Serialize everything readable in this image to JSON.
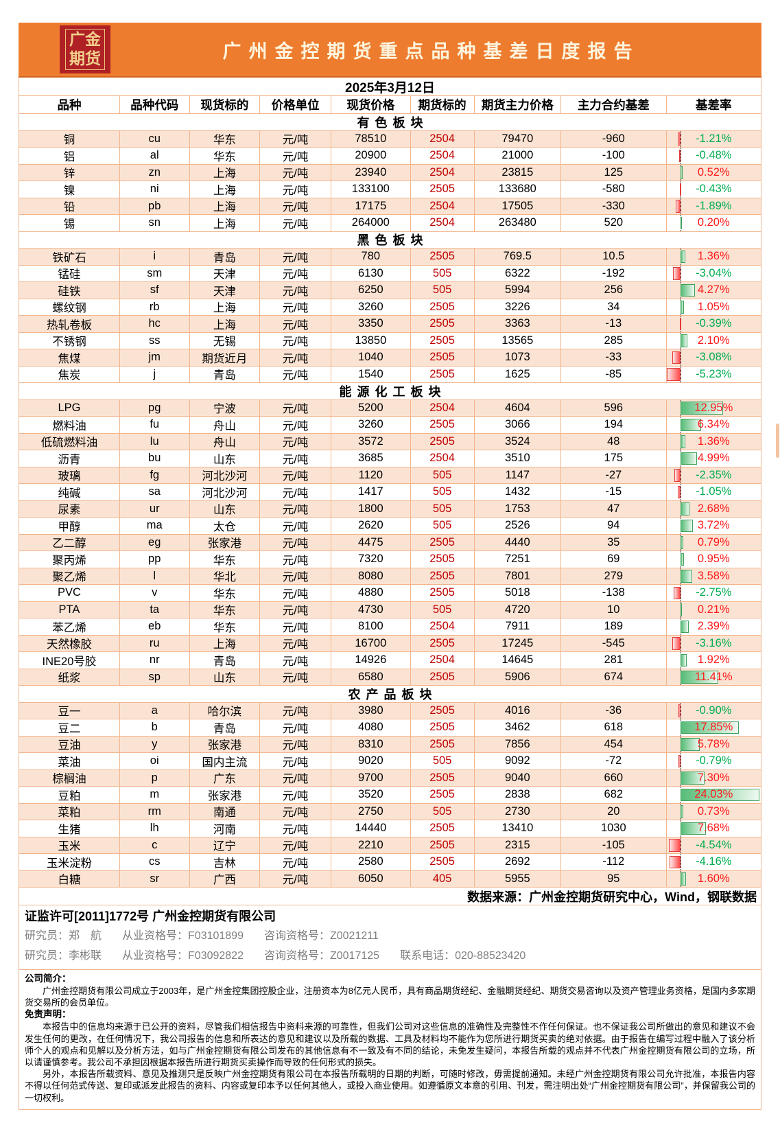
{
  "header": {
    "logo_line1": "广金",
    "logo_line2": "期货",
    "title": "广州金控期货重点品种基差日度报告"
  },
  "date": "2025年3月12日",
  "table": {
    "columns": [
      "品种",
      "品种代码",
      "现货标的",
      "价格单位",
      "现货价格",
      "期货标的",
      "期货主力价格",
      "主力合约基差",
      "基差率"
    ],
    "sections": [
      {
        "name": "有色板块",
        "rows": [
          [
            "铜",
            "cu",
            "华东",
            "元/吨",
            "78510",
            "2504",
            "79470",
            "-960",
            "-1.21%"
          ],
          [
            "铝",
            "al",
            "华东",
            "元/吨",
            "20900",
            "2504",
            "21000",
            "-100",
            "-0.48%"
          ],
          [
            "锌",
            "zn",
            "上海",
            "元/吨",
            "23940",
            "2504",
            "23815",
            "125",
            "0.52%"
          ],
          [
            "镍",
            "ni",
            "上海",
            "元/吨",
            "133100",
            "2505",
            "133680",
            "-580",
            "-0.43%"
          ],
          [
            "铅",
            "pb",
            "上海",
            "元/吨",
            "17175",
            "2504",
            "17505",
            "-330",
            "-1.89%"
          ],
          [
            "锡",
            "sn",
            "上海",
            "元/吨",
            "264000",
            "2504",
            "263480",
            "520",
            "0.20%"
          ]
        ]
      },
      {
        "name": "黑色板块",
        "rows": [
          [
            "铁矿石",
            "i",
            "青岛",
            "元/吨",
            "780",
            "2505",
            "769.5",
            "10.5",
            "1.36%"
          ],
          [
            "锰硅",
            "sm",
            "天津",
            "元/吨",
            "6130",
            "505",
            "6322",
            "-192",
            "-3.04%"
          ],
          [
            "硅铁",
            "sf",
            "天津",
            "元/吨",
            "6250",
            "505",
            "5994",
            "256",
            "4.27%"
          ],
          [
            "螺纹钢",
            "rb",
            "上海",
            "元/吨",
            "3260",
            "2505",
            "3226",
            "34",
            "1.05%"
          ],
          [
            "热轧卷板",
            "hc",
            "上海",
            "元/吨",
            "3350",
            "2505",
            "3363",
            "-13",
            "-0.39%"
          ],
          [
            "不锈钢",
            "ss",
            "无锡",
            "元/吨",
            "13850",
            "2505",
            "13565",
            "285",
            "2.10%"
          ],
          [
            "焦煤",
            "jm",
            "期货近月",
            "元/吨",
            "1040",
            "2505",
            "1073",
            "-33",
            "-3.08%"
          ],
          [
            "焦炭",
            "j",
            "青岛",
            "元/吨",
            "1540",
            "2505",
            "1625",
            "-85",
            "-5.23%"
          ]
        ]
      },
      {
        "name": "能源化工板块",
        "rows": [
          [
            "LPG",
            "pg",
            "宁波",
            "元/吨",
            "5200",
            "2504",
            "4604",
            "596",
            "12.95%"
          ],
          [
            "燃料油",
            "fu",
            "舟山",
            "元/吨",
            "3260",
            "2505",
            "3066",
            "194",
            "6.34%"
          ],
          [
            "低硫燃料油",
            "lu",
            "舟山",
            "元/吨",
            "3572",
            "2505",
            "3524",
            "48",
            "1.36%"
          ],
          [
            "沥青",
            "bu",
            "山东",
            "元/吨",
            "3685",
            "2504",
            "3510",
            "175",
            "4.99%"
          ],
          [
            "玻璃",
            "fg",
            "河北沙河",
            "元/吨",
            "1120",
            "505",
            "1147",
            "-27",
            "-2.35%"
          ],
          [
            "纯碱",
            "sa",
            "河北沙河",
            "元/吨",
            "1417",
            "505",
            "1432",
            "-15",
            "-1.05%"
          ],
          [
            "尿素",
            "ur",
            "山东",
            "元/吨",
            "1800",
            "505",
            "1753",
            "47",
            "2.68%"
          ],
          [
            "甲醇",
            "ma",
            "太仓",
            "元/吨",
            "2620",
            "505",
            "2526",
            "94",
            "3.72%"
          ],
          [
            "乙二醇",
            "eg",
            "张家港",
            "元/吨",
            "4475",
            "2505",
            "4440",
            "35",
            "0.79%"
          ],
          [
            "聚丙烯",
            "pp",
            "华东",
            "元/吨",
            "7320",
            "2505",
            "7251",
            "69",
            "0.95%"
          ],
          [
            "聚乙烯",
            "l",
            "华北",
            "元/吨",
            "8080",
            "2505",
            "7801",
            "279",
            "3.58%"
          ],
          [
            "PVC",
            "v",
            "华东",
            "元/吨",
            "4880",
            "2505",
            "5018",
            "-138",
            "-2.75%"
          ],
          [
            "PTA",
            "ta",
            "华东",
            "元/吨",
            "4730",
            "505",
            "4720",
            "10",
            "0.21%"
          ],
          [
            "苯乙烯",
            "eb",
            "华东",
            "元/吨",
            "8100",
            "2504",
            "7911",
            "189",
            "2.39%"
          ],
          [
            "天然橡胶",
            "ru",
            "上海",
            "元/吨",
            "16700",
            "2505",
            "17245",
            "-545",
            "-3.16%"
          ],
          [
            "INE20号胶",
            "nr",
            "青岛",
            "元/吨",
            "14926",
            "2504",
            "14645",
            "281",
            "1.92%"
          ],
          [
            "纸浆",
            "sp",
            "山东",
            "元/吨",
            "6580",
            "2505",
            "5906",
            "674",
            "11.41%"
          ]
        ]
      },
      {
        "name": "农产品板块",
        "rows": [
          [
            "豆一",
            "a",
            "哈尔滨",
            "元/吨",
            "3980",
            "2505",
            "4016",
            "-36",
            "-0.90%"
          ],
          [
            "豆二",
            "b",
            "青岛",
            "元/吨",
            "4080",
            "2505",
            "3462",
            "618",
            "17.85%"
          ],
          [
            "豆油",
            "y",
            "张家港",
            "元/吨",
            "8310",
            "2505",
            "7856",
            "454",
            "5.78%"
          ],
          [
            "菜油",
            "oi",
            "国内主流",
            "元/吨",
            "9020",
            "505",
            "9092",
            "-72",
            "-0.79%"
          ],
          [
            "棕榈油",
            "p",
            "广东",
            "元/吨",
            "9700",
            "2505",
            "9040",
            "660",
            "7.30%"
          ],
          [
            "豆粕",
            "m",
            "张家港",
            "元/吨",
            "3520",
            "2505",
            "2838",
            "682",
            "24.03%"
          ],
          [
            "菜粕",
            "rm",
            "南通",
            "元/吨",
            "2750",
            "505",
            "2730",
            "20",
            "0.73%"
          ],
          [
            "生猪",
            "lh",
            "河南",
            "元/吨",
            "14440",
            "2505",
            "13410",
            "1030",
            "7.68%"
          ],
          [
            "玉米",
            "c",
            "辽宁",
            "元/吨",
            "2210",
            "2505",
            "2315",
            "-105",
            "-4.54%"
          ],
          [
            "玉米淀粉",
            "cs",
            "吉林",
            "元/吨",
            "2580",
            "2505",
            "2692",
            "-112",
            "-4.16%"
          ],
          [
            "白糖",
            "sr",
            "广西",
            "元/吨",
            "6050",
            "405",
            "5955",
            "95",
            "1.60%"
          ]
        ]
      }
    ]
  },
  "data_source": "数据来源：广州金控期货研究中心，Wind，钢联数据",
  "footer": {
    "license": "证监许可[2011]1772号 广州金控期货有限公司",
    "researchers": [
      {
        "role": "研究员：郑　航",
        "qual": "从业资格号：F03101899",
        "consult": "咨询资格号：Z0021211",
        "phone": ""
      },
      {
        "role": "研究员：李彬联",
        "qual": "从业资格号：F03092822",
        "consult": "咨询资格号：Z0017125",
        "phone": "联系电话：020-88523420"
      }
    ],
    "intro_label": "公司简介：",
    "intro_text": "广州金控期货有限公司成立于2003年，是广州金控集团控股企业，注册资本为8亿元人民币，具有商品期货经纪、金融期货经纪、期货交易咨询以及资产管理业务资格，是国内多家期货交易所的会员单位。",
    "disclaimer_label": "免责声明：",
    "disclaimer_p1": "本报告中的信息均来源于已公开的资料，尽管我们相信报告中资料来源的可靠性，但我们公司对这些信息的准确性及完整性不作任何保证。也不保证我公司所做出的意见和建议不会发生任何的更改，在任何情况下，我公司报告的信息和所表达的意见和建议以及所载的数据、工具及材料均不能作为您所进行期货买卖的绝对依据。由于报告在编写过程中融入了该分析师个人的观点和见解以及分析方法，如与广州金控期货有限公司发布的其他信息有不一致及有不同的结论，未免发生疑问，本报告所载的观点并不代表广州金控期货有限公司的立场，所以请谨慎参考。我公司不承担因根据本报告所进行期货买卖操作而导致的任何形式的损失。",
    "disclaimer_p2": "另外，本报告所载资料、意见及推测只是反映广州金控期货有限公司在本报告所载明的日期的判断，可随时修改，毋需提前通知。未经广州金控期货有限公司允许批准，本报告内容不得以任何范式传送、复印或派发此报告的资料、内容或复印本予以任何其他人，或投入商业使用。如遵循原文本意的引用、刊发，需注明出处“广州金控期货有限公司”，并保留我公司的一切权利。"
  }
}
